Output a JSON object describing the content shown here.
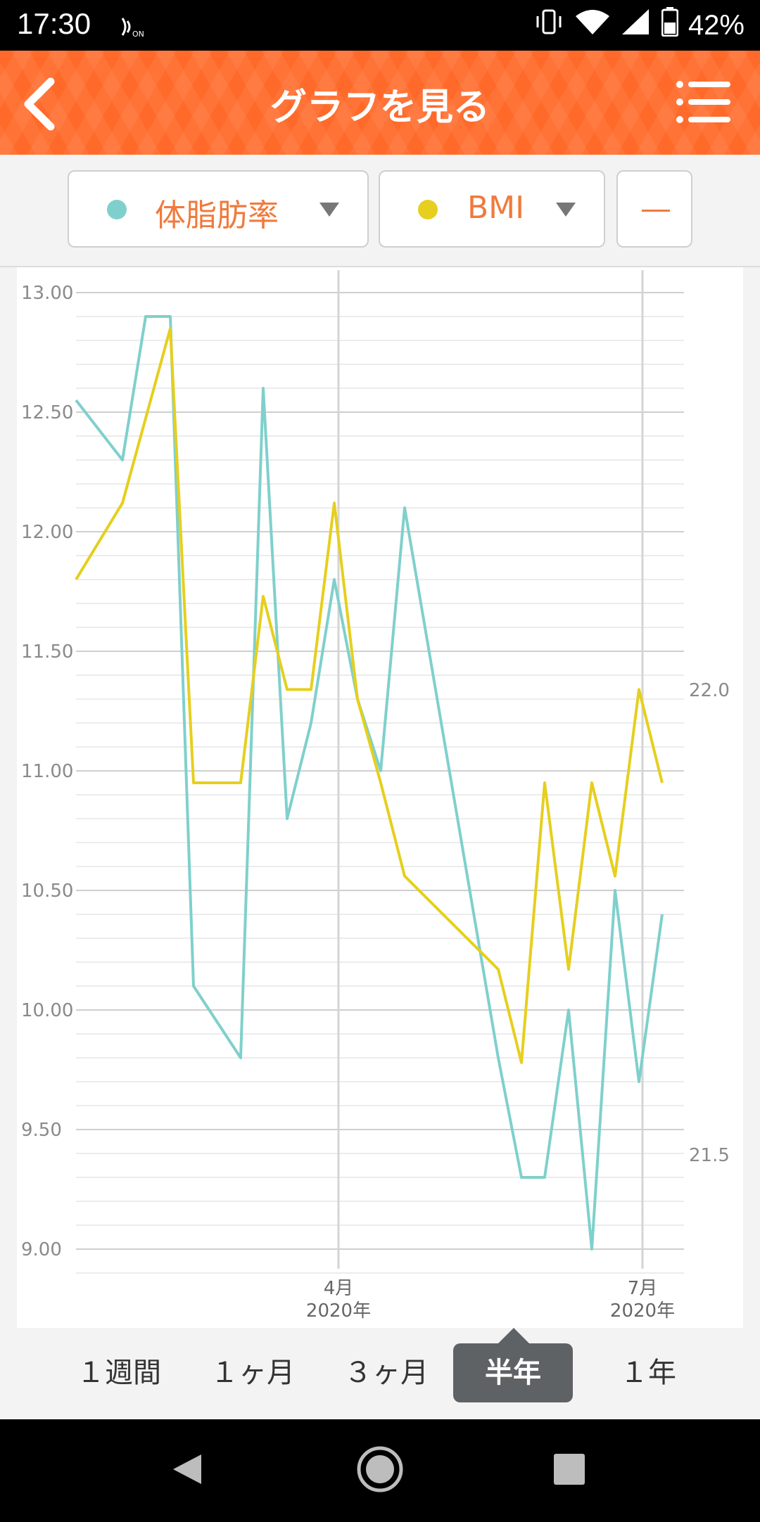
{
  "status_bar": {
    "time": "17:30",
    "nfc_label": "ON",
    "battery": "42%"
  },
  "header": {
    "title": "グラフを見る"
  },
  "selectors": [
    {
      "label": "体脂肪率",
      "color": "#7fd0cc"
    },
    {
      "label": "BMI",
      "color": "#e6cf1e"
    },
    {
      "label": "—",
      "color": "#f07a3c"
    }
  ],
  "chart_data": {
    "type": "line",
    "y_left_ticks": [
      "13.00",
      "12.50",
      "12.00",
      "11.50",
      "11.00",
      "10.50",
      "10.00",
      "9.50",
      "9.00"
    ],
    "y_left_range": [
      9.0,
      13.0
    ],
    "y_right_ticks": [
      "22.0",
      "21.5"
    ],
    "x_labels": [
      {
        "month": "4月",
        "year": "2020年"
      },
      {
        "month": "7月",
        "year": "2020年"
      }
    ],
    "grid": true,
    "series": [
      {
        "name": "体脂肪率",
        "color": "#7fd0cc",
        "values": [
          12.55,
          12.3,
          12.9,
          12.9,
          10.1,
          9.8,
          12.6,
          10.8,
          11.2,
          11.8,
          11.3,
          11.0,
          12.1,
          9.8,
          9.3,
          9.3,
          10.0,
          9.0,
          10.5,
          9.7,
          10.4
        ]
      },
      {
        "name": "BMI",
        "color": "#e6cf1e",
        "values": [
          11.8,
          12.12,
          12.85,
          10.95,
          10.95,
          11.73,
          11.34,
          11.34,
          12.12,
          11.3,
          10.95,
          10.56,
          10.17,
          9.78,
          10.95,
          10.17,
          10.95,
          10.56,
          11.34,
          10.95
        ]
      }
    ]
  },
  "period_tabs": [
    {
      "label": "１週間",
      "active": false
    },
    {
      "label": "１ヶ月",
      "active": false
    },
    {
      "label": "３ヶ月",
      "active": false
    },
    {
      "label": "半年",
      "active": true
    },
    {
      "label": "１年",
      "active": false
    }
  ]
}
